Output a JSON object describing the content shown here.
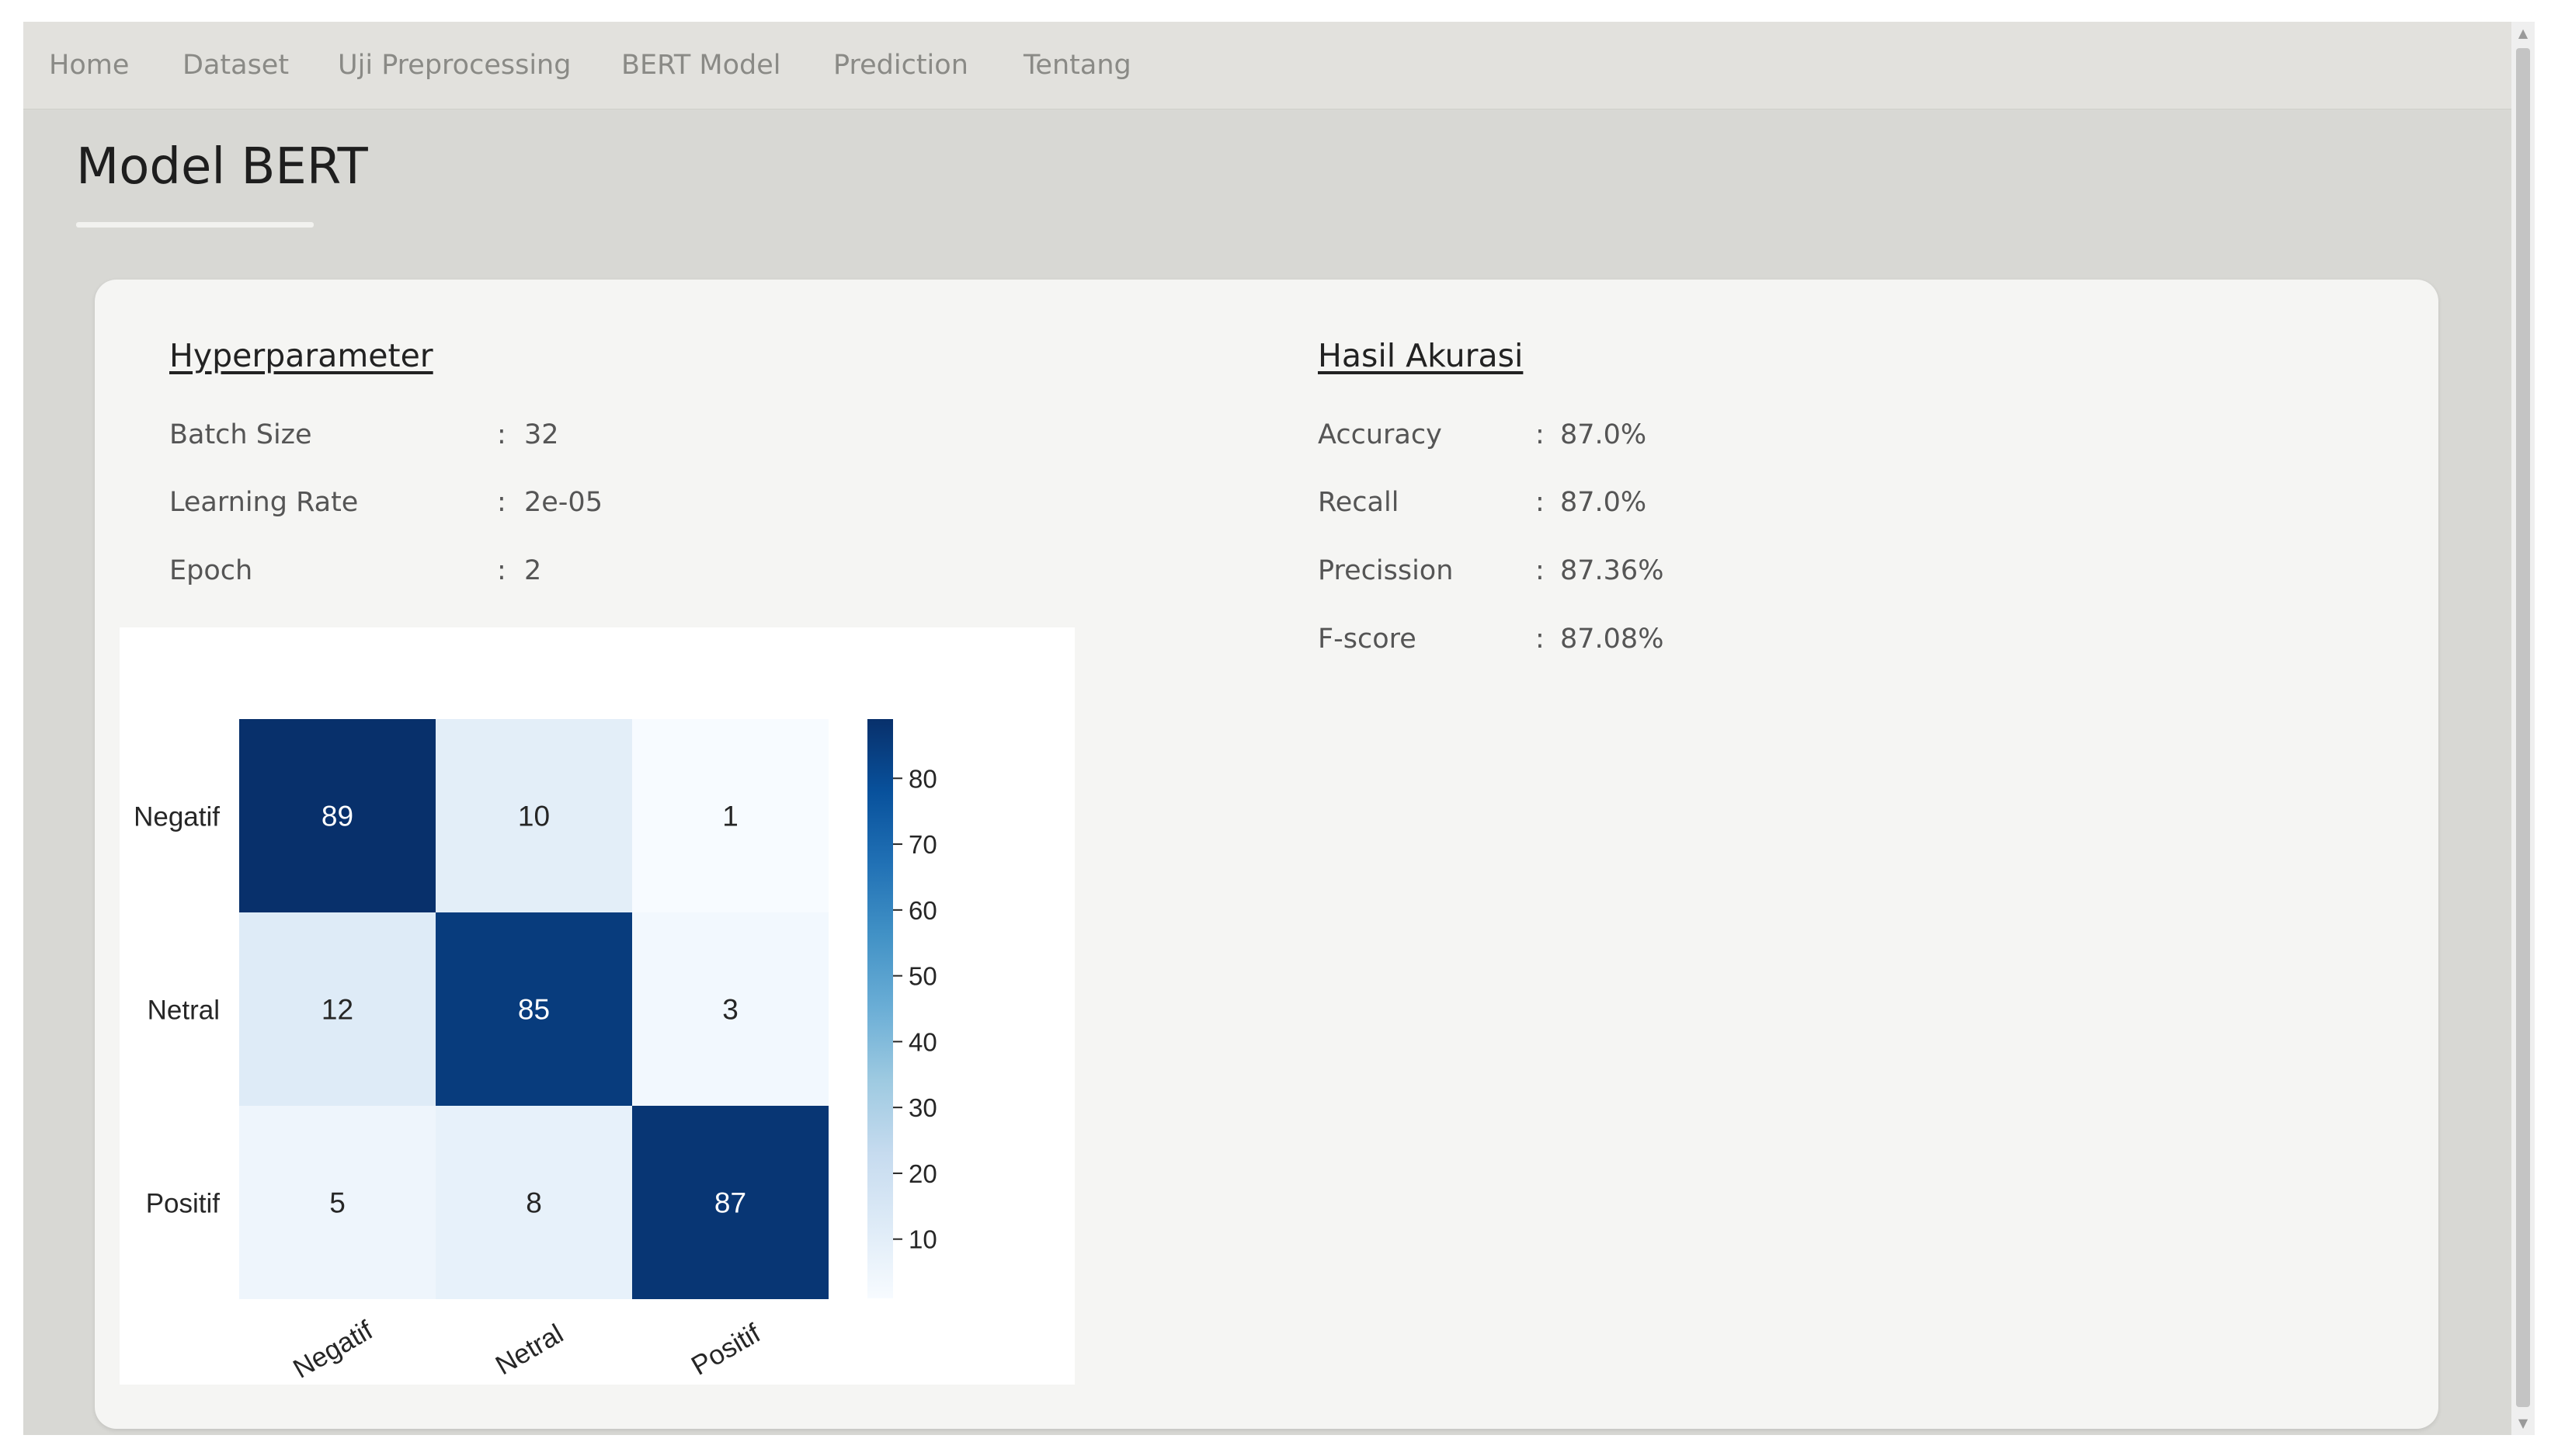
{
  "nav": {
    "items": [
      {
        "label": "Home"
      },
      {
        "label": "Dataset"
      },
      {
        "label": "Uji Preprocessing"
      },
      {
        "label": "BERT Model"
      },
      {
        "label": "Prediction"
      },
      {
        "label": "Tentang"
      }
    ]
  },
  "page": {
    "title": "Model BERT"
  },
  "hyperparameter": {
    "title": "Hyperparameter",
    "rows": [
      {
        "label": "Batch Size",
        "value": "32"
      },
      {
        "label": "Learning Rate",
        "value": "2e-05"
      },
      {
        "label": "Epoch",
        "value": "2"
      }
    ]
  },
  "results": {
    "title": "Hasil Akurasi",
    "rows": [
      {
        "label": "Accuracy",
        "value": "87.0%"
      },
      {
        "label": "Recall",
        "value": "87.0%"
      },
      {
        "label": "Precission",
        "value": "87.36%"
      },
      {
        "label": "F-score",
        "value": "87.08%"
      }
    ]
  },
  "separator": ":",
  "scrollbar": {
    "up_glyph": "▲",
    "down_glyph": "▼"
  },
  "chart_data": {
    "type": "heatmap",
    "row_labels": [
      "Negatif",
      "Netral",
      "Positif"
    ],
    "col_labels": [
      "Negatif",
      "Netral",
      "Positif"
    ],
    "values": [
      [
        89,
        10,
        1
      ],
      [
        12,
        85,
        3
      ],
      [
        5,
        8,
        87
      ]
    ],
    "colorbar": {
      "ticks": [
        80,
        70,
        60,
        50,
        40,
        30,
        20,
        10
      ],
      "range": [
        1,
        89
      ],
      "colormap": "Blues",
      "low_color": "#f7fbff",
      "high_color": "#08306b"
    }
  }
}
